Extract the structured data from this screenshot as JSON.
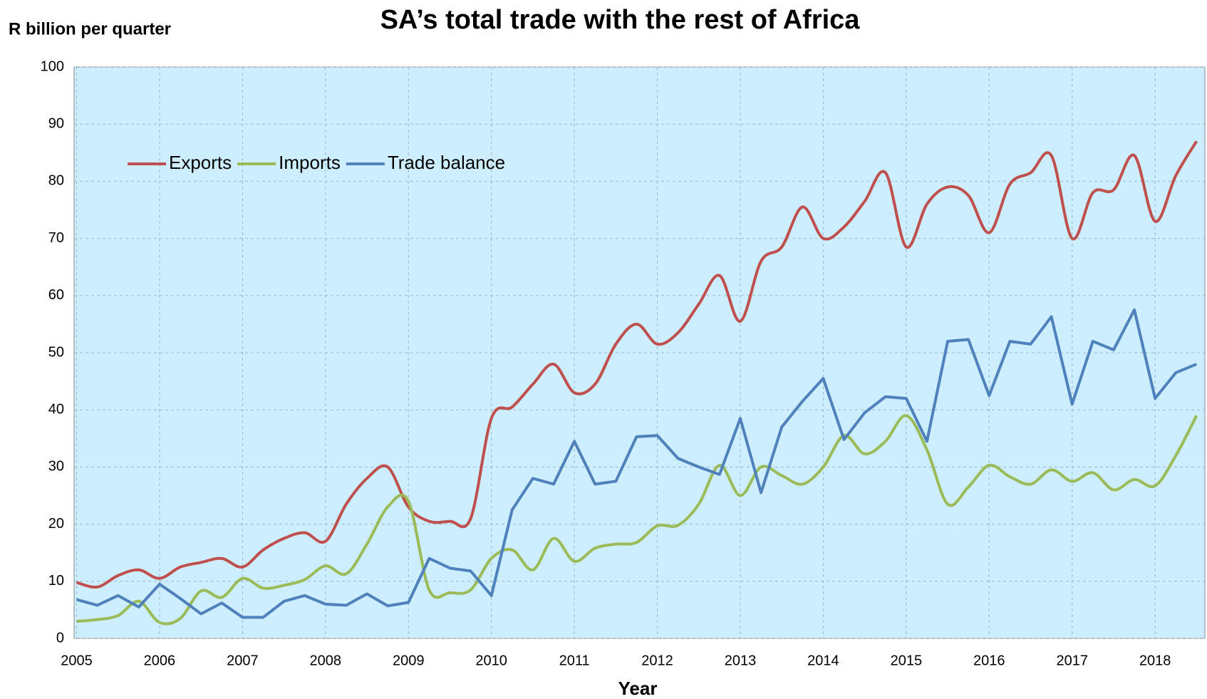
{
  "chart_data": {
    "type": "line",
    "title": "SA’s total trade with the rest of  Africa",
    "y_label": "R billion per quarter",
    "x_label": "Year",
    "x": [
      2005,
      2005.25,
      2005.5,
      2005.75,
      2006,
      2006.25,
      2006.5,
      2006.75,
      2007,
      2007.25,
      2007.5,
      2007.75,
      2008,
      2008.25,
      2008.5,
      2008.75,
      2009,
      2009.25,
      2009.5,
      2009.75,
      2010,
      2010.25,
      2010.5,
      2010.75,
      2011,
      2011.25,
      2011.5,
      2011.75,
      2012,
      2012.25,
      2012.5,
      2012.75,
      2013,
      2013.25,
      2013.5,
      2013.75,
      2014,
      2014.25,
      2014.5,
      2014.75,
      2015,
      2015.25,
      2015.5,
      2015.75,
      2016,
      2016.25,
      2016.5,
      2016.75,
      2017,
      2017.25,
      2017.5,
      2017.75,
      2018,
      2018.25,
      2018.5
    ],
    "series": [
      {
        "name": "Exports",
        "color": "#c0504d",
        "smooth": true,
        "values": [
          9.8,
          9,
          11,
          12,
          10.5,
          12.5,
          13.3,
          14,
          12.5,
          15.5,
          17.5,
          18.5,
          17,
          23.5,
          28,
          30,
          23,
          20.5,
          20.5,
          21,
          38.5,
          40.5,
          44.5,
          48,
          43,
          44.5,
          51.5,
          55,
          51.5,
          53.5,
          58.5,
          63.5,
          55.5,
          66,
          68.5,
          75.5,
          70,
          72,
          76.5,
          81.5,
          68.5,
          76,
          79,
          77.5,
          71,
          79.5,
          81.5,
          84.5,
          70,
          78,
          78.5,
          84.5,
          73,
          81,
          87
        ]
      },
      {
        "name": "Imports",
        "color": "#9bbb59",
        "smooth": true,
        "values": [
          3,
          3.3,
          4,
          6.5,
          2.8,
          3.5,
          8.3,
          7.2,
          10.5,
          8.8,
          9.3,
          10.3,
          12.7,
          11.3,
          16.5,
          23,
          24,
          8.5,
          8,
          8.5,
          14,
          15.5,
          12,
          17.5,
          13.5,
          15.8,
          16.5,
          16.8,
          19.7,
          19.8,
          23.5,
          30.3,
          25,
          30,
          28.5,
          27,
          30,
          35.5,
          32.3,
          34.5,
          39,
          33,
          23.5,
          26.5,
          30.3,
          28.3,
          27,
          29.5,
          27.5,
          29,
          26,
          27.8,
          26.7,
          32,
          39
        ]
      },
      {
        "name": "Trade balance",
        "color": "#4f81bd",
        "smooth": false,
        "values": [
          6.8,
          5.8,
          7.5,
          5.5,
          9.5,
          7,
          4.3,
          6.2,
          3.7,
          3.7,
          6.5,
          7.5,
          6,
          5.8,
          7.8,
          5.7,
          6.3,
          14,
          12.3,
          11.8,
          7.5,
          22.5,
          28,
          27,
          34.5,
          27,
          27.5,
          35.3,
          35.5,
          31.5,
          30,
          28.7,
          38.5,
          25.5,
          37,
          41.5,
          45.5,
          34.8,
          39.5,
          42.3,
          42,
          34.5,
          52,
          52.3,
          42.5,
          52,
          51.5,
          56.3,
          41,
          52,
          50.5,
          57.5,
          42,
          46.5,
          48
        ]
      }
    ],
    "xlim": [
      2004.97,
      2018.6
    ],
    "xticks": [
      2005,
      2006,
      2007,
      2008,
      2009,
      2010,
      2011,
      2012,
      2013,
      2014,
      2015,
      2016,
      2017,
      2018
    ],
    "ylim": [
      0,
      100
    ],
    "yticks": [
      0,
      10,
      20,
      30,
      40,
      50,
      60,
      70,
      80,
      90,
      100
    ],
    "grid": true,
    "legend": "upper left",
    "plot_background": "#cdeefe"
  }
}
